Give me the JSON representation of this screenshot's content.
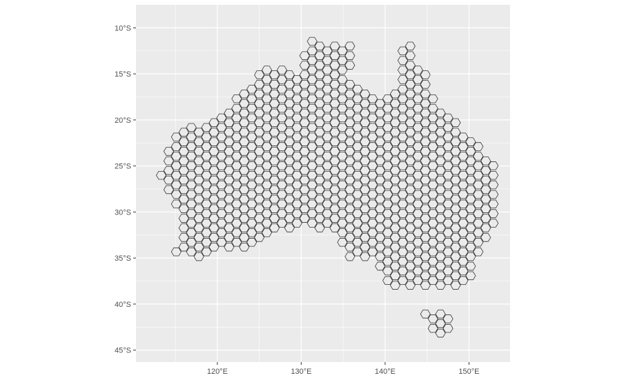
{
  "chart_data": {
    "type": "hexbin-map",
    "title": "",
    "xlabel": "",
    "ylabel": "",
    "xlim": [
      110.3,
      154.9
    ],
    "ylim": [
      -46.3,
      -7.5
    ],
    "x_ticks": [
      {
        "value": 120,
        "label": "120°E"
      },
      {
        "value": 130,
        "label": "130°E"
      },
      {
        "value": 140,
        "label": "140°E"
      },
      {
        "value": 150,
        "label": "150°E"
      }
    ],
    "y_ticks": [
      {
        "value": -10,
        "label": "10°S"
      },
      {
        "value": -15,
        "label": "15°S"
      },
      {
        "value": -20,
        "label": "20°S"
      },
      {
        "value": -25,
        "label": "25°S"
      },
      {
        "value": -30,
        "label": "30°S"
      },
      {
        "value": -35,
        "label": "35°S"
      },
      {
        "value": -40,
        "label": "40°S"
      },
      {
        "value": -45,
        "label": "45°S"
      }
    ],
    "grid": true,
    "panel_color": "#ebebeb",
    "grid_color": "#ffffff",
    "hex_fill": "#ebebeb",
    "hex_stroke": "#333333",
    "hex_spacing_deg": 0.9,
    "region": "Australia (mainland and Tasmania)"
  }
}
